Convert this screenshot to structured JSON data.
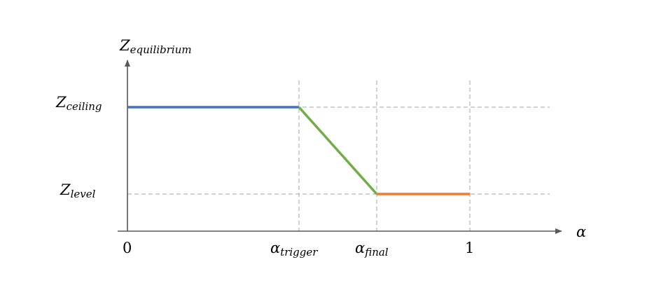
{
  "diagram": {
    "y_axis": {
      "symbol": "Z",
      "subscript": "equilibrium"
    },
    "x_axis": {
      "symbol": "α"
    },
    "y_levels": [
      {
        "key": "ceiling",
        "symbol": "Z",
        "subscript": "ceiling"
      },
      {
        "key": "level",
        "symbol": "Z",
        "subscript": "level"
      }
    ],
    "x_marks": [
      {
        "key": "zero",
        "label": "0"
      },
      {
        "key": "trigger",
        "symbol": "α",
        "subscript": "trigger"
      },
      {
        "key": "final",
        "symbol": "α",
        "subscript": "final"
      },
      {
        "key": "one",
        "label": "1"
      }
    ],
    "segments": [
      {
        "name": "ceiling-segment",
        "from": "zero",
        "to": "trigger",
        "level_from": "ceiling",
        "level_to": "ceiling",
        "color": "#4472C4"
      },
      {
        "name": "transition-segment",
        "from": "trigger",
        "to": "final",
        "level_from": "ceiling",
        "level_to": "level",
        "color": "#70AD47"
      },
      {
        "name": "level-segment",
        "from": "final",
        "to": "one",
        "level_from": "level",
        "level_to": "level",
        "color": "#ED7D31"
      }
    ],
    "axis_color": "#595959",
    "guide_color": "#A6A6A6"
  }
}
